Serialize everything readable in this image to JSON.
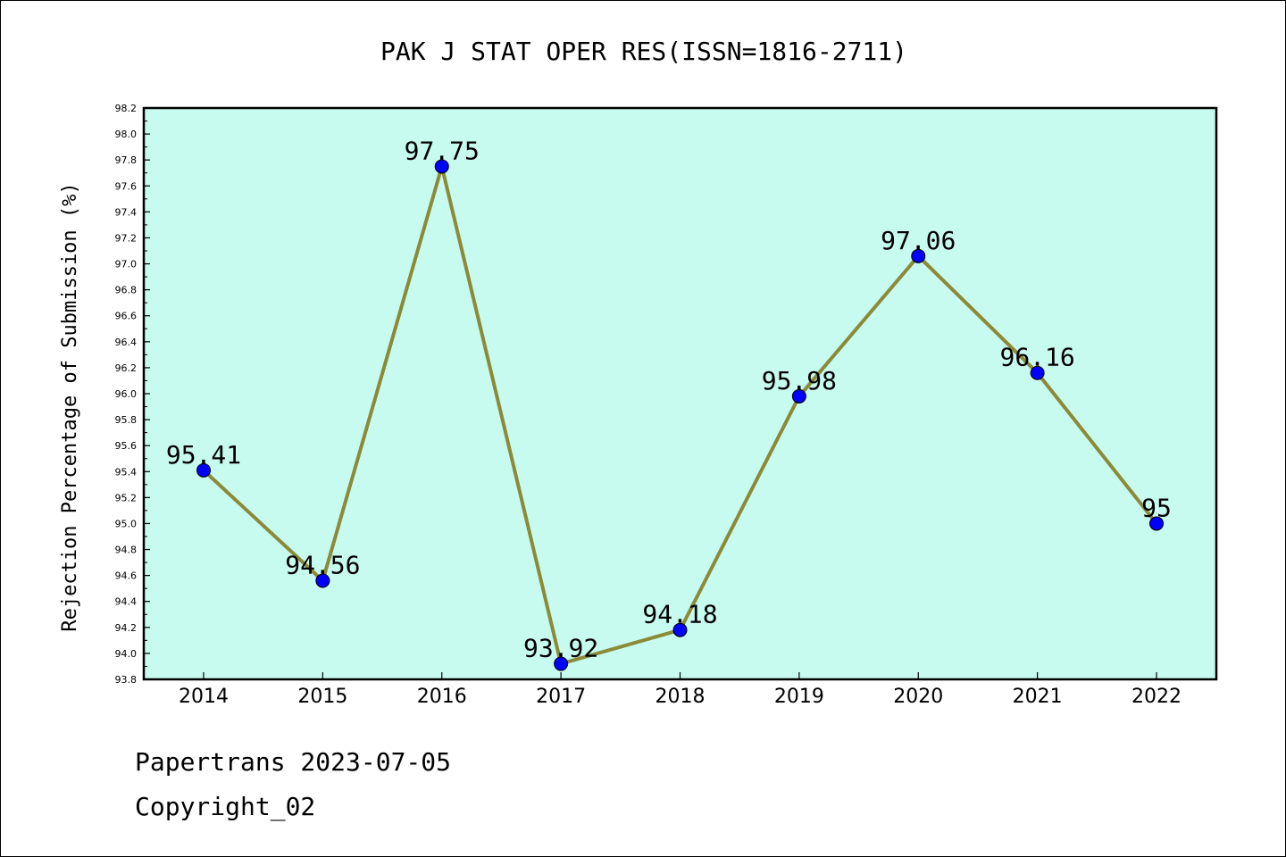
{
  "chart_data": {
    "type": "line",
    "title": "PAK J STAT OPER RES(ISSN=1816-2711)",
    "xlabel": "",
    "ylabel": "Rejection Percentage of Submission (%)",
    "categories": [
      "2014",
      "2015",
      "2016",
      "2017",
      "2018",
      "2019",
      "2020",
      "2021",
      "2022"
    ],
    "series": [
      {
        "values": [
          95.41,
          94.56,
          97.75,
          93.92,
          94.18,
          95.98,
          97.06,
          96.16,
          95.0
        ],
        "labels": [
          "95.41",
          "94.56",
          "97.75",
          "93.92",
          "94.18",
          "95.98",
          "97.06",
          "96.16",
          "95"
        ]
      }
    ],
    "ylim": [
      93.8,
      98.2
    ],
    "yticks": [
      "93.8",
      "94.0",
      "94.2",
      "94.4",
      "94.6",
      "94.8",
      "95.0",
      "95.2",
      "95.4",
      "95.6",
      "95.8",
      "96.0",
      "96.2",
      "96.4",
      "96.6",
      "96.8",
      "97.0",
      "97.2",
      "97.4",
      "97.6",
      "97.8",
      "98.0",
      "98.2"
    ],
    "grid": false,
    "colors": {
      "plot_background": "#c8fbef",
      "line": "#8b8a38",
      "marker": "#0000ff"
    }
  },
  "footer": {
    "line1": "Papertrans 2023-07-05",
    "line2": "Copyright_02"
  }
}
